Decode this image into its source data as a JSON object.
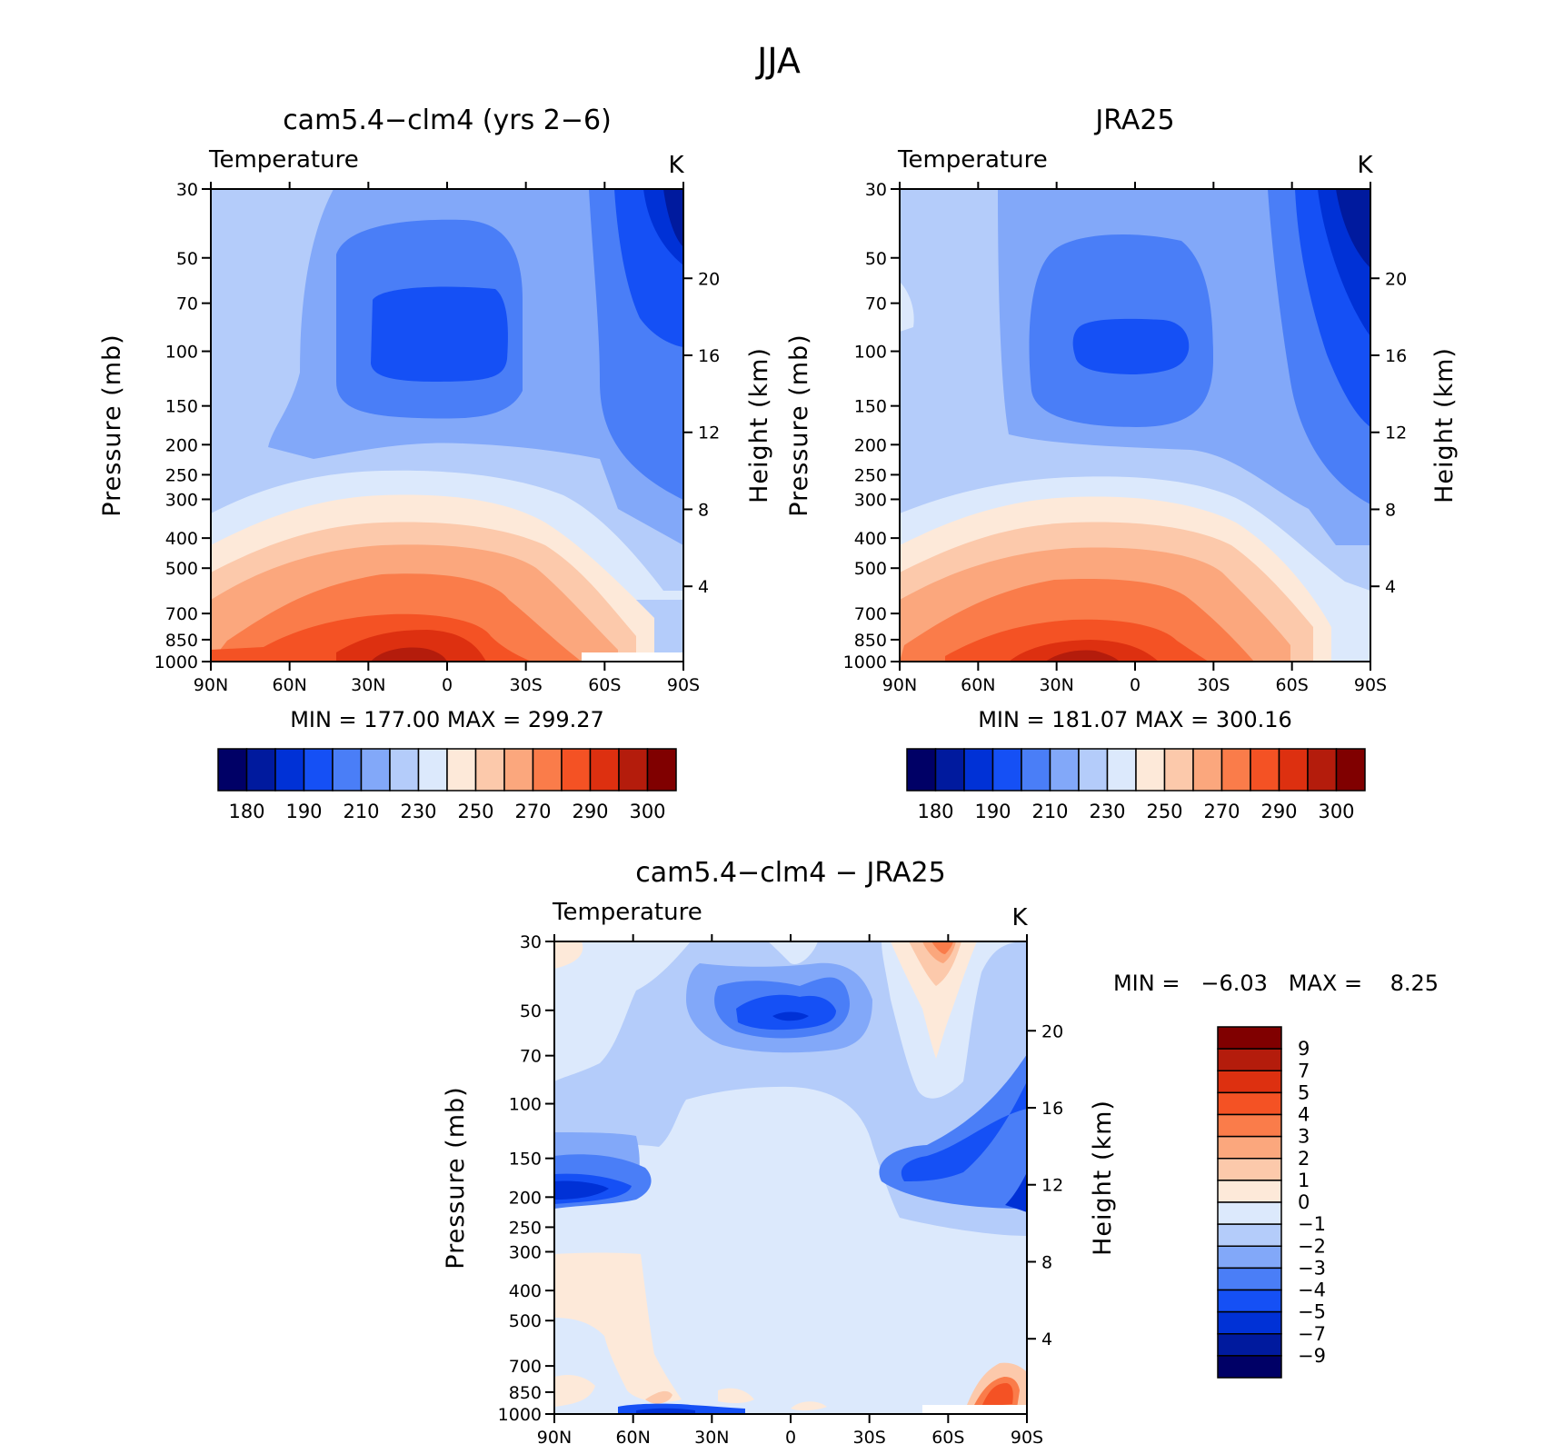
{
  "figure": {
    "title": "JJA"
  },
  "chart_data": [
    {
      "type": "heatmap",
      "title": "cam5.4−clm4 (yrs 2−6)",
      "variable": "Temperature",
      "units": "K",
      "ylabel": "Pressure (mb)",
      "ylabel_right": "Height (km)",
      "x_ticks": [
        "90N",
        "60N",
        "30N",
        "0",
        "30S",
        "60S",
        "90S"
      ],
      "y_ticks": [
        "30",
        "50",
        "70",
        "100",
        "150",
        "200",
        "250",
        "300",
        "400",
        "500",
        "700",
        "850",
        "1000"
      ],
      "height_ticks": [
        "20",
        "16",
        "12",
        "8",
        "4"
      ],
      "ylim": [
        1000,
        30
      ],
      "log_scale_y": true,
      "stats": "MIN = 177.00 MAX = 299.27",
      "colorbar": {
        "orientation": "horizontal",
        "labels": [
          "180",
          "190",
          "210",
          "230",
          "250",
          "270",
          "290",
          "300"
        ],
        "colors": [
          "#000066",
          "#001a9e",
          "#0031d6",
          "#1550f5",
          "#4a7ef7",
          "#82a8f9",
          "#b4ccfa",
          "#dce9fc",
          "#fde9d9",
          "#fcc9ab",
          "#fba77d",
          "#fa7c4a",
          "#f45224",
          "#dd3010",
          "#b41c0c",
          "#800000"
        ]
      }
    },
    {
      "type": "heatmap",
      "title": "JRA25",
      "variable": "Temperature",
      "units": "K",
      "ylabel": "Pressure (mb)",
      "ylabel_right": "Height (km)",
      "x_ticks": [
        "90N",
        "60N",
        "30N",
        "0",
        "30S",
        "60S",
        "90S"
      ],
      "y_ticks": [
        "30",
        "50",
        "70",
        "100",
        "150",
        "200",
        "250",
        "300",
        "400",
        "500",
        "700",
        "850",
        "1000"
      ],
      "height_ticks": [
        "20",
        "16",
        "12",
        "8",
        "4"
      ],
      "ylim": [
        1000,
        30
      ],
      "log_scale_y": true,
      "stats": "MIN = 181.07 MAX = 300.16",
      "colorbar": {
        "orientation": "horizontal",
        "labels": [
          "180",
          "190",
          "210",
          "230",
          "250",
          "270",
          "290",
          "300"
        ],
        "colors": [
          "#000066",
          "#001a9e",
          "#0031d6",
          "#1550f5",
          "#4a7ef7",
          "#82a8f9",
          "#b4ccfa",
          "#dce9fc",
          "#fde9d9",
          "#fcc9ab",
          "#fba77d",
          "#fa7c4a",
          "#f45224",
          "#dd3010",
          "#b41c0c",
          "#800000"
        ]
      }
    },
    {
      "type": "heatmap",
      "title": "cam5.4−clm4 − JRA25",
      "variable": "Temperature",
      "units": "K",
      "ylabel": "Pressure (mb)",
      "ylabel_right": "Height (km)",
      "x_ticks": [
        "90N",
        "60N",
        "30N",
        "0",
        "30S",
        "60S",
        "90S"
      ],
      "y_ticks": [
        "30",
        "50",
        "70",
        "100",
        "150",
        "200",
        "250",
        "300",
        "400",
        "500",
        "700",
        "850",
        "1000"
      ],
      "height_ticks": [
        "20",
        "16",
        "12",
        "8",
        "4"
      ],
      "ylim": [
        1000,
        30
      ],
      "log_scale_y": true,
      "stats": "MIN =   −6.03   MAX =    8.25",
      "colorbar": {
        "orientation": "vertical",
        "labels": [
          "9",
          "7",
          "5",
          "4",
          "3",
          "2",
          "1",
          "0",
          "−1",
          "−2",
          "−3",
          "−4",
          "−5",
          "−7",
          "−9"
        ],
        "colors": [
          "#800000",
          "#b41c0c",
          "#dd3010",
          "#f45224",
          "#fa7c4a",
          "#fba77d",
          "#fcc9ab",
          "#fde9d9",
          "#dce9fc",
          "#b4ccfa",
          "#82a8f9",
          "#4a7ef7",
          "#1550f5",
          "#0031d6",
          "#001a9e",
          "#000066"
        ]
      }
    }
  ]
}
